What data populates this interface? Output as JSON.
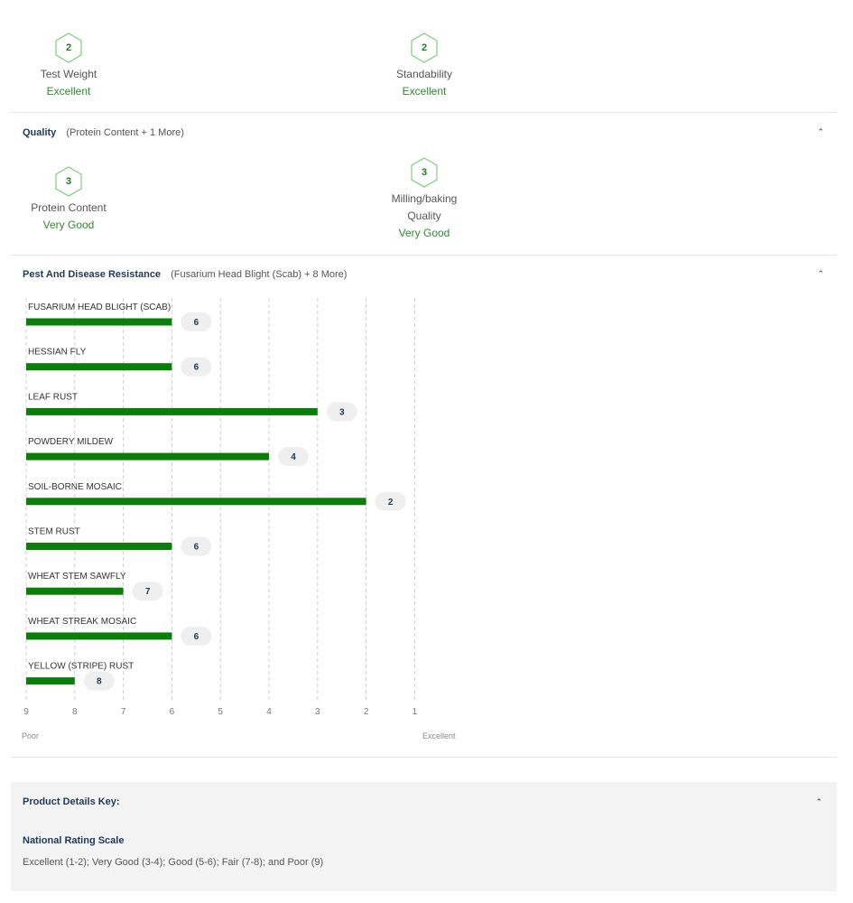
{
  "agronomics": {
    "ratings": [
      {
        "score": "2",
        "name": "Test Weight",
        "value": "Excellent"
      },
      {
        "score": "2",
        "name": "Standability",
        "value": "Excellent"
      }
    ]
  },
  "quality": {
    "title": "Quality",
    "subtitle": "(Protein Content + 1 More)",
    "ratings": [
      {
        "score": "3",
        "name": "Protein Content",
        "value": "Very Good"
      },
      {
        "score": "3",
        "name_line1": "Milling/baking",
        "name_line2": "Quality",
        "value": "Very Good"
      }
    ]
  },
  "pest": {
    "title": "Pest And Disease Resistance",
    "subtitle": "(Fusarium Head Blight (Scab) + 8 More)",
    "axis_poor": "Poor",
    "axis_excellent": "Excellent"
  },
  "chart_data": {
    "type": "bar",
    "orientation": "horizontal",
    "reversed_axis": true,
    "xlim": [
      9,
      1
    ],
    "ticks": [
      "9",
      "8",
      "7",
      "6",
      "5",
      "4",
      "3",
      "2",
      "1"
    ],
    "categories": [
      "FUSARIUM HEAD BLIGHT (SCAB)",
      "HESSIAN FLY",
      "LEAF RUST",
      "POWDERY MILDEW",
      "SOIL-BORNE MOSAIC",
      "STEM RUST",
      "WHEAT STEM SAWFLY",
      "WHEAT STREAK MOSAIC",
      "YELLOW (STRIPE) RUST"
    ],
    "values": [
      6,
      6,
      3,
      4,
      2,
      6,
      7,
      6,
      8
    ],
    "grid": true,
    "bar_color": "#0b7d0b"
  },
  "key": {
    "title": "Product Details Key:",
    "scale_title": "National Rating Scale",
    "scale_text": "Excellent (1-2); Very Good (3-4); Good (5-6); Fair (7-8); and Poor (9)"
  },
  "icons": {
    "collapse": "chevron-up-icon",
    "score": "hexagon-icon"
  }
}
